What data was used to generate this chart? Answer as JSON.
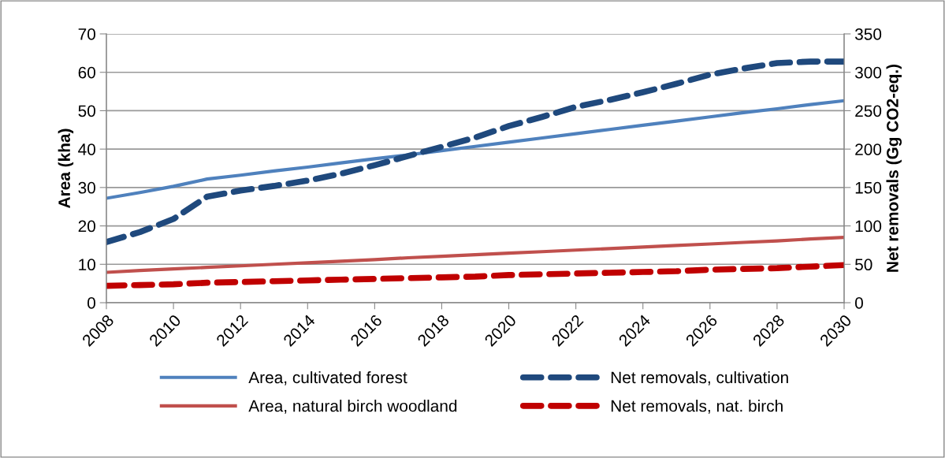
{
  "chart_data": {
    "type": "line",
    "ylabel": "Area (kha)",
    "y2label": "Net removals (Gg CO2-eq.)",
    "x": [
      2008,
      2009,
      2010,
      2011,
      2012,
      2013,
      2014,
      2015,
      2016,
      2017,
      2018,
      2019,
      2020,
      2021,
      2022,
      2023,
      2024,
      2025,
      2026,
      2027,
      2028,
      2029,
      2030
    ],
    "xlim": [
      2008,
      2030
    ],
    "xticks": [
      2008,
      2010,
      2012,
      2014,
      2016,
      2018,
      2020,
      2022,
      2024,
      2026,
      2028,
      2030
    ],
    "ylim": [
      0,
      70
    ],
    "yticks": [
      0,
      10,
      20,
      30,
      40,
      50,
      60,
      70
    ],
    "y2lim": [
      0,
      350
    ],
    "y2ticks": [
      0,
      50,
      100,
      150,
      200,
      250,
      300,
      350
    ],
    "grid": "y",
    "legend": "bottom",
    "series": [
      {
        "name": "Area, cultivated forest",
        "color": "#4f81bd",
        "line_style": "solid",
        "values": [
          27.2,
          28.7,
          30.3,
          32.2,
          33.2,
          34.3,
          35.3,
          36.4,
          37.5,
          38.5,
          39.6,
          40.7,
          41.8,
          42.9,
          44.0,
          45.1,
          46.2,
          47.3,
          48.4,
          49.5,
          50.5,
          51.6,
          52.6
        ]
      },
      {
        "name": "Area, natural birch woodland",
        "color": "#c0504d",
        "line_style": "solid",
        "values": [
          7.9,
          8.4,
          8.8,
          9.2,
          9.6,
          10.0,
          10.4,
          10.8,
          11.2,
          11.7,
          12.1,
          12.5,
          12.9,
          13.3,
          13.7,
          14.1,
          14.5,
          14.9,
          15.3,
          15.7,
          16.1,
          16.6,
          17.0
        ]
      },
      {
        "name": "Net removals, cultivation",
        "color": "#1f497d",
        "line_style": "dashed",
        "axis": "y2",
        "values": [
          79,
          92,
          109,
          138,
          146,
          152,
          159,
          168,
          179,
          191,
          203,
          215,
          230,
          242,
          255,
          264,
          274,
          285,
          297,
          305,
          312,
          314,
          314
        ]
      },
      {
        "name": "Net removals, nat. birch",
        "color": "#c00000",
        "line_style": "dashed",
        "axis": "y2",
        "values": [
          22,
          23,
          24,
          26,
          27,
          28,
          29,
          30,
          31,
          32,
          33,
          34,
          36,
          37,
          38,
          39,
          40,
          41,
          43,
          44,
          45,
          47,
          49
        ]
      }
    ]
  }
}
